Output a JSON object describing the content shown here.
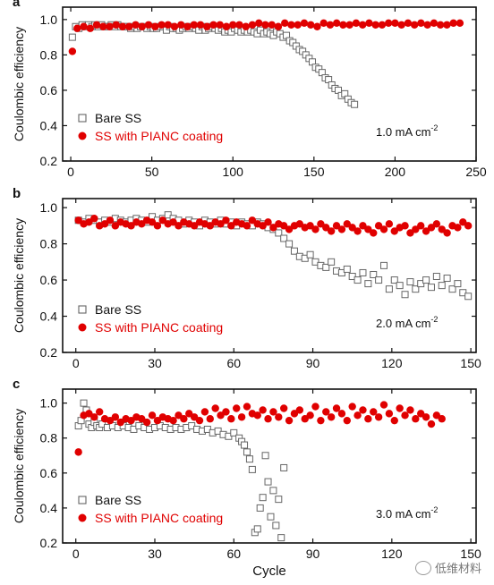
{
  "watermark": "低维材料",
  "shared": {
    "ylabel": "Coulombic efficiency",
    "legend": [
      "Bare SS",
      "SS with PIANC coating"
    ],
    "colors": {
      "bare": "#666666",
      "coated": "#e00000",
      "axis": "#111111"
    }
  },
  "chart_data": [
    {
      "type": "scatter",
      "panel_label": "a",
      "annotation": "1.0 mA cm",
      "annotation_sup": "-2",
      "xlabel": "",
      "ylabel": "Coulombic efficiency",
      "xlim": [
        -5,
        250
      ],
      "ylim": [
        0.2,
        1.07
      ],
      "xticks": [
        0,
        50,
        100,
        150,
        200,
        250
      ],
      "yticks": [
        0.2,
        0.4,
        0.6,
        0.8,
        1.0
      ],
      "legend_position": "bottom-left",
      "series": [
        {
          "name": "Bare SS",
          "marker": "open-square",
          "x": [
            1,
            3,
            5,
            7,
            9,
            11,
            13,
            15,
            17,
            19,
            21,
            23,
            25,
            27,
            29,
            31,
            33,
            35,
            37,
            39,
            41,
            43,
            45,
            47,
            49,
            51,
            53,
            55,
            57,
            59,
            61,
            63,
            65,
            67,
            69,
            71,
            73,
            75,
            77,
            79,
            81,
            83,
            85,
            87,
            89,
            91,
            93,
            95,
            97,
            99,
            101,
            103,
            105,
            107,
            109,
            111,
            113,
            115,
            117,
            119,
            121,
            123,
            125,
            127,
            129,
            131,
            133,
            135,
            137,
            139,
            141,
            143,
            145,
            147,
            149,
            151,
            153,
            155,
            157,
            159,
            161,
            163,
            165,
            167,
            169,
            171,
            173,
            175
          ],
          "y": [
            0.9,
            0.96,
            0.95,
            0.97,
            0.96,
            0.97,
            0.96,
            0.97,
            0.96,
            0.97,
            0.96,
            0.96,
            0.97,
            0.96,
            0.97,
            0.96,
            0.96,
            0.96,
            0.95,
            0.96,
            0.95,
            0.96,
            0.96,
            0.95,
            0.96,
            0.95,
            0.95,
            0.96,
            0.96,
            0.94,
            0.96,
            0.95,
            0.95,
            0.94,
            0.95,
            0.96,
            0.95,
            0.96,
            0.95,
            0.94,
            0.96,
            0.94,
            0.95,
            0.96,
            0.95,
            0.94,
            0.95,
            0.93,
            0.94,
            0.93,
            0.95,
            0.94,
            0.93,
            0.94,
            0.93,
            0.94,
            0.93,
            0.92,
            0.94,
            0.92,
            0.93,
            0.92,
            0.91,
            0.93,
            0.92,
            0.9,
            0.91,
            0.88,
            0.87,
            0.85,
            0.83,
            0.82,
            0.8,
            0.78,
            0.76,
            0.73,
            0.72,
            0.7,
            0.67,
            0.66,
            0.63,
            0.61,
            0.6,
            0.57,
            0.58,
            0.55,
            0.53,
            0.52
          ]
        },
        {
          "name": "SS with PIANC coating",
          "marker": "filled-circle",
          "x": [
            1,
            4,
            8,
            12,
            16,
            20,
            24,
            28,
            32,
            36,
            40,
            44,
            48,
            52,
            56,
            60,
            64,
            68,
            72,
            76,
            80,
            84,
            88,
            92,
            96,
            100,
            104,
            108,
            112,
            116,
            120,
            124,
            128,
            132,
            136,
            140,
            144,
            148,
            152,
            156,
            160,
            164,
            168,
            172,
            176,
            180,
            184,
            188,
            192,
            196,
            200,
            204,
            208,
            212,
            216,
            220,
            224,
            228,
            232,
            236,
            240
          ],
          "y": [
            0.82,
            0.95,
            0.96,
            0.95,
            0.97,
            0.96,
            0.96,
            0.97,
            0.96,
            0.96,
            0.97,
            0.96,
            0.97,
            0.96,
            0.97,
            0.97,
            0.96,
            0.97,
            0.96,
            0.97,
            0.97,
            0.96,
            0.97,
            0.97,
            0.96,
            0.97,
            0.97,
            0.96,
            0.97,
            0.98,
            0.97,
            0.97,
            0.96,
            0.98,
            0.97,
            0.97,
            0.98,
            0.97,
            0.96,
            0.98,
            0.97,
            0.98,
            0.97,
            0.97,
            0.98,
            0.97,
            0.98,
            0.97,
            0.97,
            0.98,
            0.98,
            0.97,
            0.98,
            0.97,
            0.98,
            0.97,
            0.98,
            0.97,
            0.97,
            0.98,
            0.98
          ]
        }
      ]
    },
    {
      "type": "scatter",
      "panel_label": "b",
      "annotation": "2.0 mA cm",
      "annotation_sup": "-2",
      "xlabel": "",
      "ylabel": "Coulombic efficiency",
      "xlim": [
        -5,
        152
      ],
      "ylim": [
        0.2,
        1.05
      ],
      "xticks": [
        0,
        30,
        60,
        90,
        120,
        150
      ],
      "yticks": [
        0.2,
        0.4,
        0.6,
        0.8,
        1.0
      ],
      "legend_position": "bottom-left",
      "series": [
        {
          "name": "Bare SS",
          "marker": "open-square",
          "x": [
            1,
            3,
            5,
            7,
            9,
            11,
            13,
            15,
            17,
            19,
            21,
            23,
            25,
            27,
            29,
            31,
            33,
            35,
            37,
            39,
            41,
            43,
            45,
            47,
            49,
            51,
            53,
            55,
            57,
            59,
            61,
            63,
            65,
            67,
            69,
            71,
            73,
            75,
            77,
            79,
            81,
            83,
            85,
            87,
            89,
            91,
            93,
            95,
            97,
            99,
            101,
            103,
            105,
            107,
            109,
            111,
            113,
            115,
            117,
            119,
            121,
            123,
            125,
            127,
            129,
            131,
            133,
            135,
            137,
            139,
            141,
            143,
            145,
            147,
            149
          ],
          "y": [
            0.93,
            0.92,
            0.94,
            0.93,
            0.92,
            0.93,
            0.92,
            0.94,
            0.93,
            0.92,
            0.93,
            0.94,
            0.93,
            0.92,
            0.95,
            0.93,
            0.94,
            0.96,
            0.94,
            0.93,
            0.91,
            0.93,
            0.92,
            0.9,
            0.93,
            0.92,
            0.91,
            0.93,
            0.91,
            0.92,
            0.9,
            0.92,
            0.91,
            0.9,
            0.92,
            0.91,
            0.89,
            0.88,
            0.86,
            0.83,
            0.8,
            0.76,
            0.73,
            0.72,
            0.74,
            0.7,
            0.68,
            0.67,
            0.7,
            0.65,
            0.64,
            0.66,
            0.62,
            0.6,
            0.64,
            0.58,
            0.63,
            0.6,
            0.68,
            0.55,
            0.6,
            0.57,
            0.52,
            0.59,
            0.55,
            0.58,
            0.6,
            0.56,
            0.62,
            0.57,
            0.61,
            0.55,
            0.58,
            0.53,
            0.51
          ]
        },
        {
          "name": "SS with PIANC coating",
          "marker": "filled-circle",
          "x": [
            1,
            3,
            5,
            7,
            9,
            11,
            13,
            15,
            17,
            19,
            21,
            23,
            25,
            27,
            29,
            31,
            33,
            35,
            37,
            39,
            41,
            43,
            45,
            47,
            49,
            51,
            53,
            55,
            57,
            59,
            61,
            63,
            65,
            67,
            69,
            71,
            73,
            75,
            77,
            79,
            81,
            83,
            85,
            87,
            89,
            91,
            93,
            95,
            97,
            99,
            101,
            103,
            105,
            107,
            109,
            111,
            113,
            115,
            117,
            119,
            121,
            123,
            125,
            127,
            129,
            131,
            133,
            135,
            137,
            139,
            141,
            143,
            145,
            147,
            149
          ],
          "y": [
            0.93,
            0.91,
            0.92,
            0.94,
            0.9,
            0.91,
            0.93,
            0.9,
            0.92,
            0.91,
            0.9,
            0.92,
            0.91,
            0.93,
            0.92,
            0.9,
            0.93,
            0.91,
            0.92,
            0.9,
            0.92,
            0.91,
            0.9,
            0.92,
            0.91,
            0.9,
            0.92,
            0.91,
            0.93,
            0.9,
            0.92,
            0.91,
            0.9,
            0.93,
            0.91,
            0.9,
            0.92,
            0.89,
            0.91,
            0.9,
            0.88,
            0.9,
            0.91,
            0.89,
            0.9,
            0.88,
            0.91,
            0.89,
            0.87,
            0.9,
            0.88,
            0.91,
            0.89,
            0.87,
            0.9,
            0.88,
            0.86,
            0.9,
            0.88,
            0.91,
            0.87,
            0.89,
            0.9,
            0.86,
            0.88,
            0.9,
            0.87,
            0.89,
            0.91,
            0.88,
            0.86,
            0.9,
            0.89,
            0.92,
            0.9
          ]
        }
      ]
    },
    {
      "type": "scatter",
      "panel_label": "c",
      "annotation": "3.0 mA cm",
      "annotation_sup": "-2",
      "xlabel": "Cycle",
      "ylabel": "Coulombic efficiency",
      "xlim": [
        -5,
        152
      ],
      "ylim": [
        0.2,
        1.08
      ],
      "xticks": [
        0,
        30,
        60,
        90,
        120,
        150
      ],
      "yticks": [
        0.2,
        0.4,
        0.6,
        0.8,
        1.0
      ],
      "legend_position": "bottom-left",
      "series": [
        {
          "name": "Bare SS",
          "marker": "open-square",
          "x": [
            1,
            2,
            3,
            4,
            5,
            6,
            7,
            8,
            9,
            10,
            12,
            14,
            16,
            18,
            20,
            22,
            24,
            26,
            28,
            30,
            32,
            34,
            36,
            38,
            40,
            42,
            44,
            46,
            48,
            50,
            52,
            54,
            56,
            58,
            60,
            62,
            63,
            64,
            65,
            66,
            67,
            68,
            69,
            70,
            71,
            72,
            73,
            74,
            75,
            76,
            77,
            78,
            79
          ],
          "y": [
            0.87,
            0.9,
            1.0,
            0.96,
            0.88,
            0.86,
            0.89,
            0.87,
            0.86,
            0.88,
            0.86,
            0.87,
            0.86,
            0.87,
            0.86,
            0.85,
            0.87,
            0.86,
            0.85,
            0.86,
            0.87,
            0.86,
            0.85,
            0.86,
            0.85,
            0.86,
            0.87,
            0.85,
            0.84,
            0.85,
            0.83,
            0.84,
            0.82,
            0.81,
            0.83,
            0.8,
            0.78,
            0.76,
            0.72,
            0.68,
            0.62,
            0.26,
            0.28,
            0.4,
            0.46,
            0.7,
            0.55,
            0.35,
            0.5,
            0.3,
            0.45,
            0.23,
            0.63
          ]
        },
        {
          "name": "SS with PIANC coating",
          "marker": "filled-circle",
          "x": [
            1,
            3,
            5,
            7,
            9,
            11,
            13,
            15,
            17,
            19,
            21,
            23,
            25,
            27,
            29,
            31,
            33,
            35,
            37,
            39,
            41,
            43,
            45,
            47,
            49,
            51,
            53,
            55,
            57,
            59,
            61,
            63,
            65,
            67,
            69,
            71,
            73,
            75,
            77,
            79,
            81,
            83,
            85,
            87,
            89,
            91,
            93,
            95,
            97,
            99,
            101,
            103,
            105,
            107,
            109,
            111,
            113,
            115,
            117,
            119,
            121,
            123,
            125,
            127,
            129,
            131,
            133,
            135,
            137,
            139
          ],
          "y": [
            0.72,
            0.93,
            0.94,
            0.92,
            0.95,
            0.91,
            0.9,
            0.92,
            0.89,
            0.91,
            0.9,
            0.92,
            0.91,
            0.89,
            0.93,
            0.9,
            0.92,
            0.91,
            0.9,
            0.93,
            0.91,
            0.94,
            0.92,
            0.9,
            0.95,
            0.91,
            0.97,
            0.93,
            0.95,
            0.91,
            0.97,
            0.92,
            0.98,
            0.94,
            0.93,
            0.96,
            0.91,
            0.95,
            0.92,
            0.97,
            0.9,
            0.94,
            0.96,
            0.91,
            0.93,
            0.98,
            0.9,
            0.95,
            0.92,
            0.97,
            0.94,
            0.9,
            0.98,
            0.93,
            0.96,
            0.91,
            0.95,
            0.92,
            0.99,
            0.94,
            0.9,
            0.97,
            0.93,
            0.96,
            0.91,
            0.94,
            0.92,
            0.88,
            0.93,
            0.91
          ]
        }
      ]
    }
  ]
}
